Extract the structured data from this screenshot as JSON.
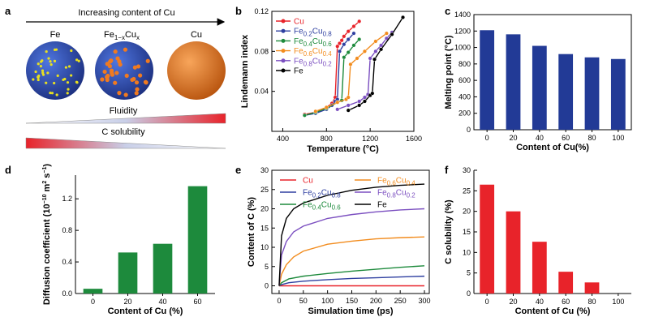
{
  "panels": {
    "a": {
      "label": "a",
      "arrow_text": "Increasing content of Cu",
      "spheres": [
        {
          "label": "Fe",
          "color": "#2e4fb8",
          "dots": "#e8e020"
        },
        {
          "label": "Fe1−xCux",
          "color": "#2e4fb8",
          "dots": "#f07a20"
        },
        {
          "label": "Cu",
          "color": "#e87a20",
          "dots": "#e87a20"
        }
      ],
      "fluidity_label": "Fluidity",
      "solubility_label": "C solubility"
    }
  },
  "chart_data": [
    {
      "id": "b",
      "panel_label": "b",
      "type": "line",
      "xlabel": "Temperature (°C)",
      "ylabel": "Lindemann index",
      "xlim": [
        300,
        1600
      ],
      "ylim": [
        0,
        0.12
      ],
      "xticks": [
        400,
        800,
        1200,
        1600
      ],
      "yticks": [
        0.04,
        0.08,
        0.12
      ],
      "xtick_labels": [
        "400",
        "800",
        "1200",
        "1600"
      ],
      "ytick_labels": [
        "0.04",
        "0.08",
        "0.12"
      ],
      "legend_position": "top-left",
      "series": [
        {
          "name": "Cu",
          "color": "#e8232a",
          "x": [
            600,
            700,
            800,
            850,
            880,
            900,
            920,
            940,
            960,
            1000,
            1050,
            1100
          ],
          "y": [
            0.017,
            0.019,
            0.024,
            0.028,
            0.034,
            0.085,
            0.088,
            0.091,
            0.095,
            0.1,
            0.105,
            0.11
          ]
        },
        {
          "name": "Fe0.2Cu0.8",
          "color": "#2e3fa0",
          "x": [
            600,
            700,
            800,
            850,
            880,
            900,
            920,
            960,
            1000,
            1050
          ],
          "y": [
            0.016,
            0.018,
            0.022,
            0.026,
            0.03,
            0.032,
            0.08,
            0.087,
            0.092,
            0.098
          ]
        },
        {
          "name": "Fe0.4Cu0.6",
          "color": "#1d8a3c",
          "x": [
            600,
            700,
            800,
            900,
            940,
            960,
            1000,
            1050,
            1100
          ],
          "y": [
            0.016,
            0.019,
            0.023,
            0.029,
            0.031,
            0.074,
            0.079,
            0.086,
            0.092
          ]
        },
        {
          "name": "Fe0.6Cu0.4",
          "color": "#f28c1e",
          "x": [
            700,
            800,
            900,
            980,
            1000,
            1020,
            1080,
            1150,
            1250,
            1350
          ],
          "y": [
            0.02,
            0.024,
            0.029,
            0.032,
            0.034,
            0.067,
            0.073,
            0.08,
            0.09,
            0.098
          ]
        },
        {
          "name": "Fe0.8Cu0.2",
          "color": "#7b4fc0",
          "x": [
            900,
            1000,
            1100,
            1150,
            1180,
            1200,
            1250,
            1300,
            1350,
            1400
          ],
          "y": [
            0.022,
            0.026,
            0.03,
            0.034,
            0.037,
            0.073,
            0.08,
            0.086,
            0.093,
            0.099
          ]
        },
        {
          "name": "Fe",
          "color": "#000000",
          "x": [
            1000,
            1100,
            1150,
            1200,
            1220,
            1240,
            1300,
            1400,
            1500
          ],
          "y": [
            0.021,
            0.026,
            0.03,
            0.036,
            0.038,
            0.072,
            0.082,
            0.097,
            0.114
          ]
        }
      ]
    },
    {
      "id": "c",
      "panel_label": "c",
      "type": "bar",
      "xlabel": "Content of Cu(%)",
      "ylabel": "Melting point (°C)",
      "categories": [
        "0",
        "20",
        "40",
        "60",
        "80",
        "100"
      ],
      "values": [
        1210,
        1160,
        1020,
        920,
        880,
        860
      ],
      "ylim": [
        0,
        1400
      ],
      "yticks": [
        0,
        200,
        400,
        600,
        800,
        1000,
        1200,
        1400
      ],
      "ytick_labels": [
        "0",
        "200",
        "400",
        "600",
        "800",
        "1000",
        "1200",
        "1400"
      ],
      "color": "#223a96"
    },
    {
      "id": "d",
      "panel_label": "d",
      "type": "bar",
      "xlabel": "Content of Cu (%)",
      "ylabel": "Diffusion coefficient (10−10 m2 s−1)",
      "categories": [
        "0",
        "20",
        "40",
        "60"
      ],
      "values": [
        0.06,
        0.52,
        0.63,
        1.36
      ],
      "ylim": [
        0,
        1.5
      ],
      "yticks": [
        0,
        0.4,
        0.8,
        1.2
      ],
      "ytick_labels": [
        "0.0",
        "0.4",
        "0.8",
        "1.2"
      ],
      "color": "#1d8a3c"
    },
    {
      "id": "e",
      "panel_label": "e",
      "type": "line",
      "xlabel": "Simulation time (ps)",
      "ylabel": "Content of C (%)",
      "xlim": [
        -15,
        310
      ],
      "ylim": [
        -2,
        30
      ],
      "xticks": [
        0,
        50,
        100,
        150,
        200,
        250,
        300
      ],
      "xtick_labels": [
        "0",
        "50",
        "100",
        "150",
        "200",
        "250",
        "300"
      ],
      "yticks": [
        0,
        5,
        10,
        15,
        20,
        25,
        30
      ],
      "ytick_labels": [
        "0",
        "5",
        "10",
        "15",
        "20",
        "25",
        "30"
      ],
      "legend_position": "top",
      "series": [
        {
          "name": "Cu",
          "color": "#e8232a",
          "x": [
            0,
            300
          ],
          "y": [
            0,
            0
          ]
        },
        {
          "name": "Fe0.2Cu0.8",
          "color": "#2e3fa0",
          "x": [
            0,
            5,
            20,
            50,
            100,
            150,
            200,
            250,
            300
          ],
          "y": [
            0,
            0.3,
            0.8,
            1.2,
            1.6,
            1.9,
            2.1,
            2.3,
            2.5
          ]
        },
        {
          "name": "Fe0.4Cu0.6",
          "color": "#1d8a3c",
          "x": [
            0,
            5,
            20,
            50,
            100,
            150,
            200,
            250,
            300
          ],
          "y": [
            0,
            0.8,
            1.8,
            2.5,
            3.2,
            3.8,
            4.3,
            4.8,
            5.2
          ]
        },
        {
          "name": "Fe0.6Cu0.4",
          "color": "#f28c1e",
          "x": [
            0,
            5,
            15,
            30,
            50,
            100,
            150,
            200,
            250,
            300
          ],
          "y": [
            0,
            3.0,
            5.5,
            7.5,
            9.0,
            10.8,
            11.6,
            12.2,
            12.5,
            12.7
          ]
        },
        {
          "name": "Fe0.8Cu0.2",
          "color": "#7b4fc0",
          "x": [
            0,
            5,
            15,
            30,
            50,
            100,
            150,
            200,
            250,
            300
          ],
          "y": [
            0,
            8.0,
            11.5,
            14.0,
            15.5,
            17.5,
            18.5,
            19.2,
            19.7,
            20.0
          ]
        },
        {
          "name": "Fe",
          "color": "#000000",
          "x": [
            0,
            5,
            15,
            30,
            50,
            100,
            150,
            200,
            250,
            300
          ],
          "y": [
            0,
            13.0,
            17.5,
            20.0,
            21.5,
            23.5,
            24.8,
            25.6,
            26.1,
            26.4
          ]
        }
      ]
    },
    {
      "id": "f",
      "panel_label": "f",
      "type": "bar",
      "xlabel": "Content of Cu (%)",
      "ylabel": "C solubility (%)",
      "categories": [
        "0",
        "20",
        "40",
        "60",
        "80",
        "100"
      ],
      "values": [
        26.5,
        20.0,
        12.6,
        5.3,
        2.7,
        0
      ],
      "ylim": [
        0,
        30
      ],
      "yticks": [
        0,
        5,
        10,
        15,
        20,
        25,
        30
      ],
      "ytick_labels": [
        "0",
        "5",
        "10",
        "15",
        "20",
        "25",
        "30"
      ],
      "color": "#e8232a"
    }
  ]
}
